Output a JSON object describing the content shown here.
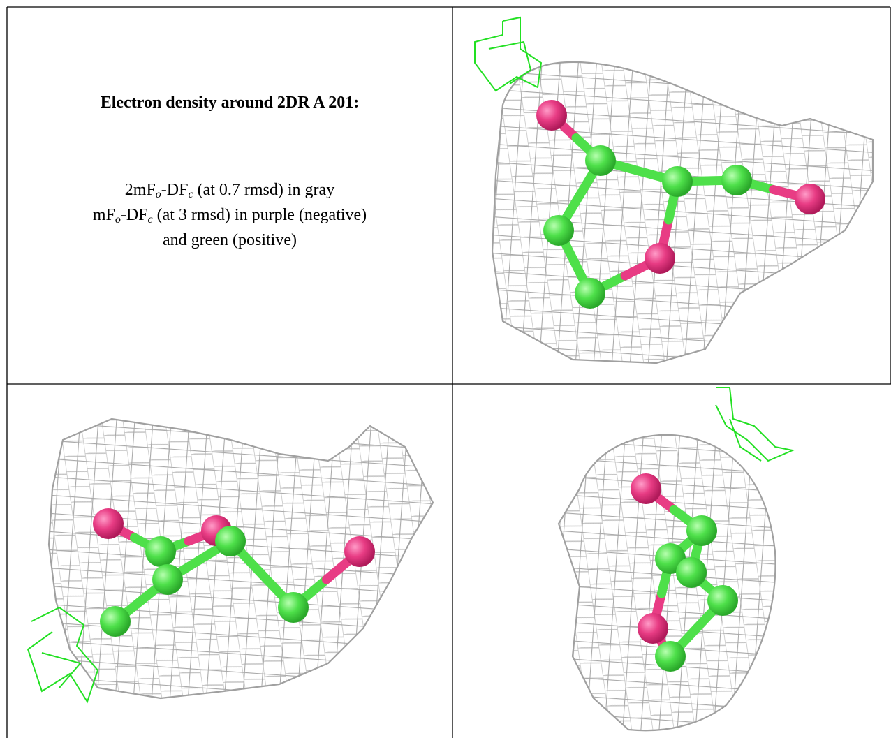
{
  "title": "Electron density around 2DR A 201:",
  "legend": [
    [
      "2mF",
      "o",
      "-DF",
      "c",
      " (at 0.7 rmsd) in gray"
    ],
    [
      "mF",
      "o",
      "-DF",
      "c",
      " (at 3 rmsd) in purple (negative)"
    ],
    [
      "and green (positive)"
    ]
  ]
}
